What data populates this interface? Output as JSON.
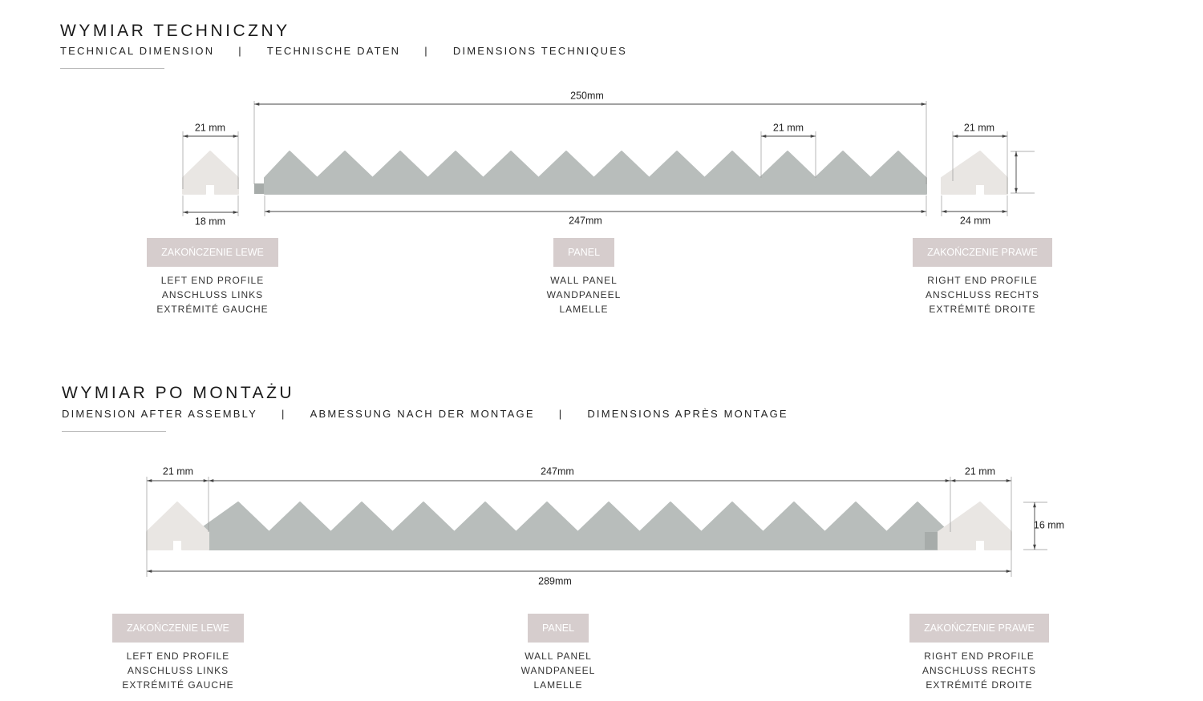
{
  "sections": [
    {
      "title": "WYMIAR TECHNICZNY",
      "subtitles": [
        "TECHNICAL DIMENSION",
        "|",
        "TECHNISCHE DATEN",
        "|",
        "DIMENSIONS TECHNIQUES"
      ],
      "dimensions": [
        "21 mm",
        "18 mm",
        "250mm",
        "21 mm",
        "247mm",
        "21 mm",
        "24 mm"
      ],
      "items": [
        {
          "badge": "ZAKOŃCZENIE LEWE",
          "lines": [
            "LEFT END PROFILE",
            "ANSCHLUSS LINKS",
            "EXTRÉMITÉ GAUCHE"
          ]
        },
        {
          "badge": "PANEL",
          "lines": [
            "WALL PANEL",
            "WANDPANEEL",
            "LAMELLE"
          ]
        },
        {
          "badge": "ZAKOŃCZENIE PRAWE",
          "lines": [
            "RIGHT END PROFILE",
            "ANSCHLUSS RECHTS",
            "EXTRÉMITÉ DROITE"
          ]
        }
      ]
    },
    {
      "title": "WYMIAR PO MONTAŻU",
      "subtitles": [
        "DIMENSION AFTER ASSEMBLY",
        "|",
        "ABMESSUNG NACH DER MONTAGE",
        "|",
        "DIMENSIONS APRÈS MONTAGE"
      ],
      "dimensions": [
        "21 mm",
        "247mm",
        "21 mm",
        "16 mm",
        "289mm"
      ],
      "items": [
        {
          "badge": "ZAKOŃCZENIE LEWE",
          "lines": [
            "LEFT END PROFILE",
            "ANSCHLUSS LINKS",
            "EXTRÉMITÉ GAUCHE"
          ]
        },
        {
          "badge": "PANEL",
          "lines": [
            "WALL PANEL",
            "WANDPANEEL",
            "LAMELLE"
          ]
        },
        {
          "badge": "ZAKOŃCZENIE PRAWE",
          "lines": [
            "RIGHT END PROFILE",
            "ANSCHLUSS RECHTS",
            "EXTRÉMITÉ DROITE"
          ]
        }
      ]
    }
  ]
}
